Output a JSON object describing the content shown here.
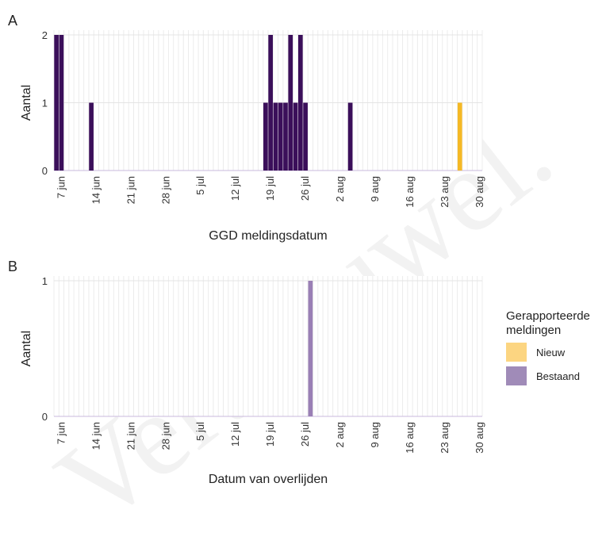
{
  "chart_data": [
    {
      "panel": "A",
      "type": "bar",
      "ylabel": "Aantal",
      "xlabel": "GGD meldingsdatum",
      "ylim": [
        0,
        2
      ],
      "yticks": [
        0,
        1,
        2
      ],
      "xlim": [
        "2020-06-06",
        "2020-08-30"
      ],
      "xticks": [
        {
          "date": "2020-06-07",
          "label": "7 jun"
        },
        {
          "date": "2020-06-14",
          "label": "14 jun"
        },
        {
          "date": "2020-06-21",
          "label": "21 jun"
        },
        {
          "date": "2020-06-28",
          "label": "28 jun"
        },
        {
          "date": "2020-07-05",
          "label": "5 jul"
        },
        {
          "date": "2020-07-12",
          "label": "12 jul"
        },
        {
          "date": "2020-07-19",
          "label": "19 jul"
        },
        {
          "date": "2020-07-26",
          "label": "26 jul"
        },
        {
          "date": "2020-08-02",
          "label": "2 aug"
        },
        {
          "date": "2020-08-09",
          "label": "9 aug"
        },
        {
          "date": "2020-08-16",
          "label": "16 aug"
        },
        {
          "date": "2020-08-23",
          "label": "23 aug"
        },
        {
          "date": "2020-08-30",
          "label": "30 aug"
        }
      ],
      "grid": true,
      "series": [
        {
          "name": "Bestaand",
          "color": "#3b0f5a",
          "points": [
            {
              "x": "2020-06-06",
              "y": 2
            },
            {
              "x": "2020-06-07",
              "y": 2
            },
            {
              "x": "2020-06-13",
              "y": 1
            },
            {
              "x": "2020-07-18",
              "y": 1
            },
            {
              "x": "2020-07-19",
              "y": 2
            },
            {
              "x": "2020-07-20",
              "y": 1
            },
            {
              "x": "2020-07-21",
              "y": 1
            },
            {
              "x": "2020-07-22",
              "y": 1
            },
            {
              "x": "2020-07-23",
              "y": 2
            },
            {
              "x": "2020-07-24",
              "y": 1
            },
            {
              "x": "2020-07-25",
              "y": 2
            },
            {
              "x": "2020-07-26",
              "y": 1
            },
            {
              "x": "2020-08-04",
              "y": 1
            }
          ]
        },
        {
          "name": "Nieuw",
          "color": "#f5b925",
          "points": [
            {
              "x": "2020-08-26",
              "y": 1
            }
          ]
        }
      ]
    },
    {
      "panel": "B",
      "type": "bar",
      "ylabel": "Aantal",
      "xlabel": "Datum van overlijden",
      "ylim": [
        0,
        1
      ],
      "yticks": [
        0,
        1
      ],
      "xlim": [
        "2020-06-06",
        "2020-08-30"
      ],
      "xticks": [
        {
          "date": "2020-06-07",
          "label": "7 jun"
        },
        {
          "date": "2020-06-14",
          "label": "14 jun"
        },
        {
          "date": "2020-06-21",
          "label": "21 jun"
        },
        {
          "date": "2020-06-28",
          "label": "28 jun"
        },
        {
          "date": "2020-07-05",
          "label": "5 jul"
        },
        {
          "date": "2020-07-12",
          "label": "12 jul"
        },
        {
          "date": "2020-07-19",
          "label": "19 jul"
        },
        {
          "date": "2020-07-26",
          "label": "26 jul"
        },
        {
          "date": "2020-08-02",
          "label": "2 aug"
        },
        {
          "date": "2020-08-09",
          "label": "9 aug"
        },
        {
          "date": "2020-08-16",
          "label": "16 aug"
        },
        {
          "date": "2020-08-23",
          "label": "23 aug"
        },
        {
          "date": "2020-08-30",
          "label": "30 aug"
        }
      ],
      "grid": true,
      "series": [
        {
          "name": "Bestaand",
          "color": "#9a7fb5",
          "points": [
            {
              "x": "2020-07-27",
              "y": 1
            }
          ]
        }
      ]
    }
  ],
  "panel_labels": {
    "a": "A",
    "b": "B"
  },
  "legend": {
    "title": "Gerapporteerde meldingen",
    "placement": "right",
    "items": [
      {
        "label": "Nieuw",
        "color": "#fcd581"
      },
      {
        "label": "Bestaand",
        "color": "#a08bb8"
      }
    ]
  },
  "watermark": "VertrOuwel."
}
